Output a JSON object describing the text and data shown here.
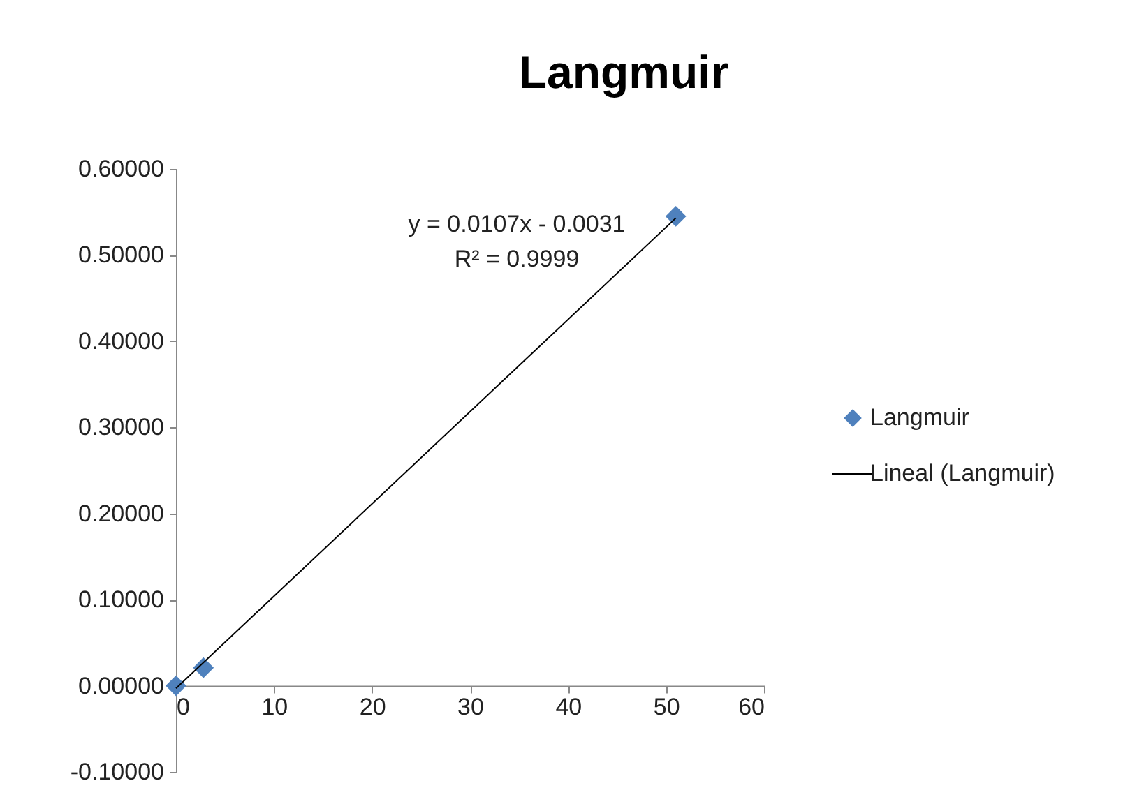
{
  "chart_data": {
    "type": "scatter",
    "title": "Langmuir",
    "series": [
      {
        "name": "Langmuir",
        "color": "#4f81bd",
        "marker": "diamond",
        "x": [
          0,
          2.8,
          51
        ],
        "values": [
          0,
          0.021,
          0.545
        ]
      },
      {
        "name": "Lineal (Langmuir)",
        "type": "line",
        "color": "#000000",
        "marker": "none",
        "x": [
          0,
          51
        ],
        "values": [
          -0.003,
          0.543
        ]
      }
    ],
    "xlim": [
      0,
      60
    ],
    "xticks": [
      0,
      10,
      20,
      30,
      40,
      50,
      60
    ],
    "ylim": [
      -0.1,
      0.6
    ],
    "yticks": [
      {
        "value": -0.1,
        "label": "-0.10000"
      },
      {
        "value": 0,
        "label": "0.00000"
      },
      {
        "value": 0.1,
        "label": "0.10000"
      },
      {
        "value": 0.2,
        "label": "0.20000"
      },
      {
        "value": 0.3,
        "label": "0.30000"
      },
      {
        "value": 0.4,
        "label": "0.40000"
      },
      {
        "value": 0.5,
        "label": "0.50000"
      },
      {
        "value": 0.6,
        "label": "0.60000"
      }
    ],
    "annotations": [
      "y = 0.0107x - 0.0031",
      "R² = 0.9999"
    ],
    "grid": false,
    "legend": "right"
  }
}
